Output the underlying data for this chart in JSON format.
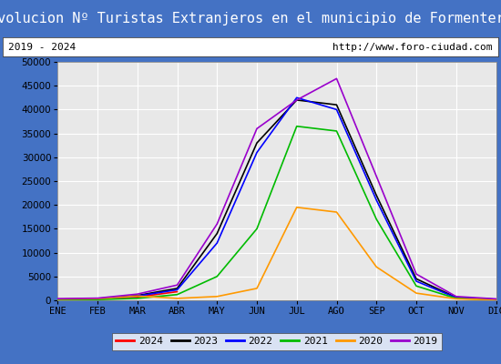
{
  "title": "Evolucion Nº Turistas Extranjeros en el municipio de Formentera",
  "subtitle_left": "2019 - 2024",
  "subtitle_right": "http://www.foro-ciudad.com",
  "ylim": [
    0,
    50000
  ],
  "months": [
    "ENE",
    "FEB",
    "MAR",
    "ABR",
    "MAY",
    "JUN",
    "JUL",
    "AGO",
    "SEP",
    "OCT",
    "NOV",
    "DIC"
  ],
  "series": {
    "2024": {
      "color": "#ff0000",
      "data": [
        150,
        250,
        700,
        1800,
        null,
        null,
        null,
        null,
        null,
        null,
        null,
        null
      ]
    },
    "2023": {
      "color": "#000000",
      "data": [
        200,
        350,
        1000,
        2500,
        14000,
        33000,
        42000,
        41000,
        22000,
        4500,
        600,
        200
      ]
    },
    "2022": {
      "color": "#0000ff",
      "data": [
        150,
        300,
        900,
        2200,
        12000,
        31000,
        42500,
        40000,
        21000,
        4000,
        550,
        180
      ]
    },
    "2021": {
      "color": "#00bb00",
      "data": [
        80,
        150,
        400,
        1200,
        5000,
        15000,
        36500,
        35500,
        17000,
        3000,
        400,
        100
      ]
    },
    "2020": {
      "color": "#ff9900",
      "data": [
        250,
        350,
        900,
        400,
        800,
        2500,
        19500,
        18500,
        7000,
        1500,
        300,
        100
      ]
    },
    "2019": {
      "color": "#9900cc",
      "data": [
        350,
        450,
        1300,
        3200,
        16000,
        36000,
        42000,
        46500,
        26000,
        5500,
        800,
        300
      ]
    }
  },
  "title_bg_color": "#4472c4",
  "title_color": "#ffffff",
  "subtitle_bg_color": "#ffffff",
  "plot_bg_color": "#e8e8e8",
  "grid_color": "#ffffff",
  "outer_bg_color": "#4472c4",
  "title_fontsize": 11,
  "subtitle_fontsize": 8,
  "tick_label_fontsize": 7.5,
  "legend_fontsize": 8,
  "line_width": 1.2
}
